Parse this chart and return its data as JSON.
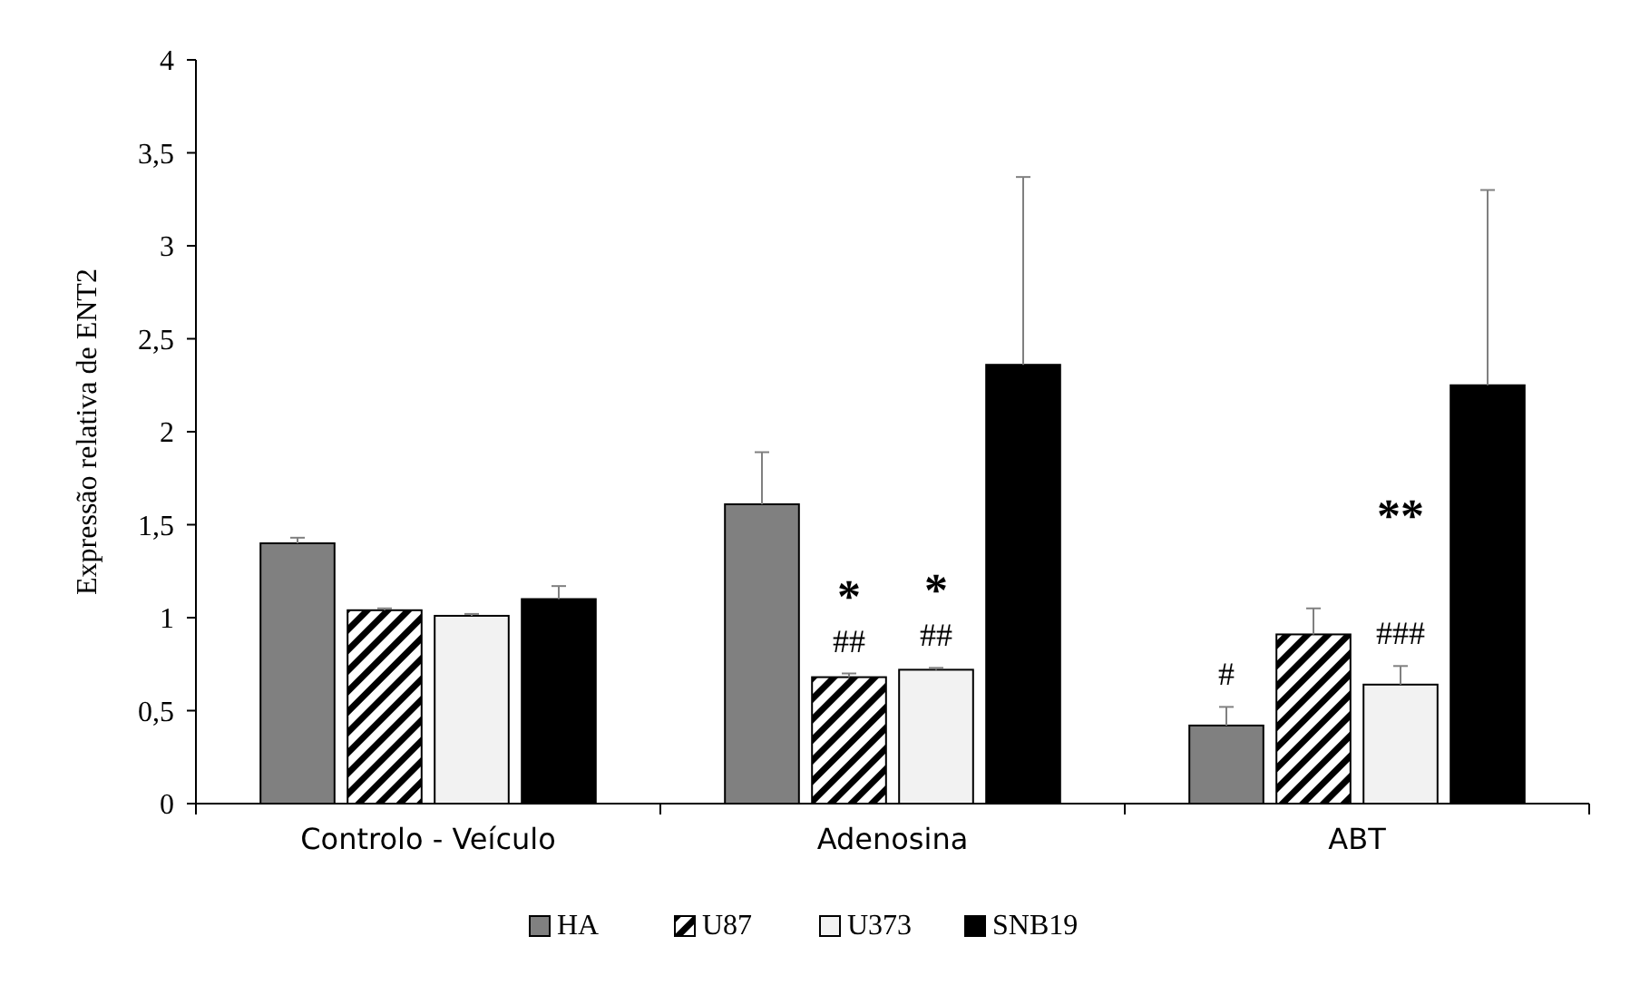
{
  "chart_data": {
    "type": "bar",
    "ylabel": "Expressão relativa de ENT2",
    "categories": [
      "Controlo - Veículo",
      "Adenosina",
      "ABT"
    ],
    "series": [
      {
        "name": "HA",
        "color": "#808080",
        "values": [
          1.4,
          1.61,
          0.42
        ],
        "errors": [
          0.03,
          0.28,
          0.1
        ]
      },
      {
        "name": "U87",
        "color": "#000000",
        "values": [
          1.04,
          0.68,
          0.91
        ],
        "errors": [
          0.01,
          0.02,
          0.14
        ]
      },
      {
        "name": "U373",
        "color": "#f2f2f2",
        "values": [
          1.01,
          0.72,
          0.64
        ],
        "errors": [
          0.01,
          0.01,
          0.1
        ]
      },
      {
        "name": "SNB19",
        "color": "#000000",
        "values": [
          1.1,
          2.36,
          2.25
        ],
        "errors": [
          0.07,
          1.01,
          1.05
        ]
      }
    ],
    "annotations": [
      "*",
      "##",
      "*",
      "##",
      "#",
      "###",
      "**"
    ],
    "ylim": [
      0,
      4
    ],
    "yticks": [
      0,
      {
        "value": 0.5,
        "label": "0,5"
      },
      1,
      {
        "value": 1.5,
        "label": "1,5"
      },
      2,
      {
        "value": 2.5,
        "label": "2,5"
      },
      3,
      {
        "value": 3.5,
        "label": "3,5"
      },
      4
    ],
    "grid": false,
    "legend": "bottom"
  }
}
